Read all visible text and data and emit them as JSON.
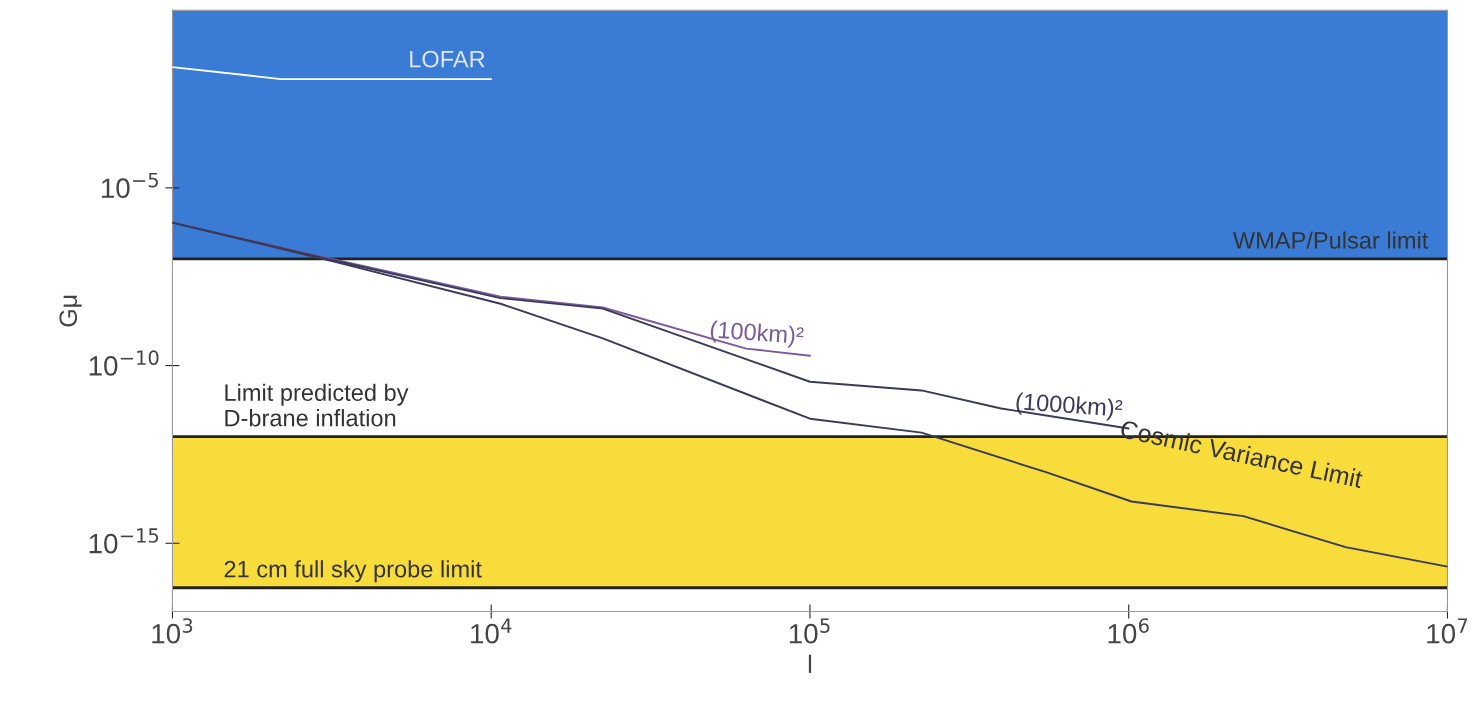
{
  "chart_data": {
    "type": "line",
    "xlabel": "l",
    "ylabel": "Gμ",
    "log": "xy",
    "xlim": [
      1000,
      10000000
    ],
    "ylim": [
      1.2e-17,
      1
    ],
    "xticks": [
      {
        "value": 1000,
        "label": "10$^{3}$"
      },
      {
        "value": 10000,
        "label": "10$^{4}$"
      },
      {
        "value": 100000,
        "label": "10$^{5}$"
      },
      {
        "value": 1000000,
        "label": "10$^{6}$"
      },
      {
        "value": 10000000,
        "label": "10$^{7}$"
      }
    ],
    "yticks": [
      {
        "value": 1e-05,
        "label": "10$^{−5}$"
      },
      {
        "value": 1e-10,
        "label": "10$^{−10}$"
      },
      {
        "value": 1e-15,
        "label": "10$^{−15}$"
      }
    ],
    "grid": false,
    "line_style": "solid",
    "bands": [
      {
        "axis": "y",
        "from": 1e-07,
        "to": 1,
        "color": "#3a7bd5"
      },
      {
        "axis": "y",
        "from": 5.6e-17,
        "to": 1e-12,
        "color": "#f8dc3c"
      }
    ],
    "ref_lines": [
      {
        "axis": "y",
        "value": 1e-07,
        "label": "WMAP/Pulsar limit"
      },
      {
        "axis": "y",
        "value": 1e-12,
        "label": "Limit predicted by\nD-brane inflation"
      },
      {
        "axis": "y",
        "value": 5.6e-17,
        "label": "21 cm full sky probe limit"
      }
    ],
    "series": [
      {
        "name": "LOFAR",
        "color": "#ffffff",
        "x": [
          1000,
          2190,
          10000
        ],
        "values": [
          0.025,
          0.0115,
          0.0115
        ]
      },
      {
        "name": "(100km)²",
        "color": "#7a5a9a",
        "x": [
          1000,
          3236,
          10700,
          22400,
          63100,
          100000
        ],
        "values": [
          1.05e-06,
          9.5e-08,
          8.7e-09,
          4.3e-09,
          3e-10,
          1.9e-10
        ]
      },
      {
        "name": "(1000km)²",
        "color": "#3a3a5a",
        "x": [
          1000,
          3236,
          10700,
          22400,
          100000,
          224000,
          398000,
          1000000
        ],
        "values": [
          1.05e-06,
          8.9e-08,
          7.9e-09,
          4e-09,
          3.5e-11,
          2e-11,
          6.2e-12,
          1.7e-12
        ]
      },
      {
        "name": "Cosmic Variance Limit",
        "color": "#3a3a5a",
        "x": [
          1000,
          3236,
          10700,
          22400,
          100000,
          224000,
          550000,
          1020000,
          2290000,
          4790000,
          10000000
        ],
        "values": [
          1.05e-06,
          8.3e-08,
          5.5e-09,
          5.8e-10,
          3.2e-12,
          1.3e-12,
          1e-13,
          1.5e-14,
          5.8e-15,
          7.8e-16,
          2.2e-16
        ]
      }
    ]
  }
}
